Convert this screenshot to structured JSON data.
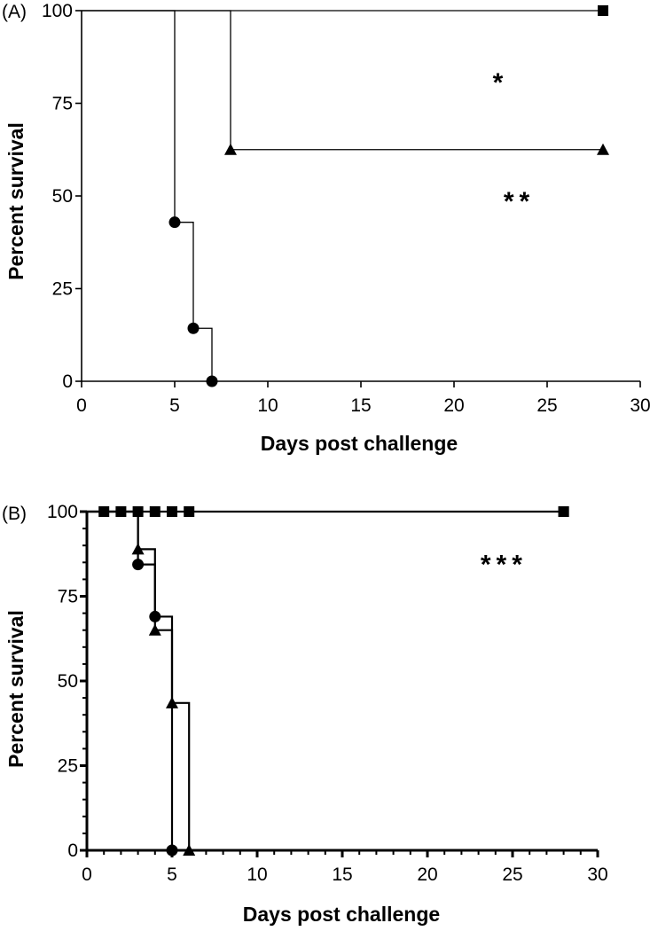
{
  "chart_data": [
    {
      "type": "line",
      "panel_label": "(A)",
      "xlabel": "Days post challenge",
      "ylabel": "Percent survival",
      "xlim": [
        0,
        30
      ],
      "ylim": [
        0,
        100
      ],
      "x_ticks": [
        0,
        5,
        10,
        15,
        20,
        25,
        30
      ],
      "y_ticks": [
        0,
        25,
        50,
        75,
        100
      ],
      "x_tick_labels": [
        "0",
        "5",
        "10",
        "15",
        "20",
        "25",
        "30"
      ],
      "y_tick_labels": [
        "0",
        "25",
        "50",
        "75",
        "100"
      ],
      "step_plot": true,
      "series": [
        {
          "marker": "square",
          "x": [
            0,
            28
          ],
          "y": [
            100,
            100
          ]
        },
        {
          "marker": "triangle",
          "x": [
            0,
            8,
            28
          ],
          "y": [
            100,
            62.5,
            62.5
          ]
        },
        {
          "marker": "circle",
          "x": [
            0,
            5,
            6,
            7
          ],
          "y": [
            100,
            42.9,
            14.3,
            0
          ]
        }
      ],
      "annotations": [
        {
          "text": "*",
          "x": 22.5,
          "y": 83
        },
        {
          "text": "**",
          "x": 23.5,
          "y": 51
        }
      ]
    },
    {
      "type": "line",
      "panel_label": "(B)",
      "xlabel": "Days post challenge",
      "ylabel": "Percent survival",
      "xlim": [
        0,
        30
      ],
      "ylim": [
        0,
        100
      ],
      "x_ticks": [
        0,
        5,
        10,
        15,
        20,
        25,
        30
      ],
      "y_ticks": [
        0,
        25,
        50,
        75,
        100
      ],
      "x_tick_labels": [
        "0",
        "5",
        "10",
        "15",
        "20",
        "25",
        "30"
      ],
      "y_tick_labels": [
        "0",
        "25",
        "50",
        "75",
        "100"
      ],
      "step_plot": true,
      "series": [
        {
          "marker": "square",
          "x": [
            0,
            28
          ],
          "y": [
            100,
            100
          ],
          "censored_x": [
            1,
            2,
            3,
            4,
            5,
            6,
            28
          ]
        },
        {
          "marker": "triangle",
          "x": [
            0,
            3,
            4,
            5,
            6
          ],
          "y": [
            100,
            88.9,
            65,
            43.5,
            0
          ]
        },
        {
          "marker": "circle",
          "x": [
            0,
            3,
            4,
            5
          ],
          "y": [
            100,
            84.4,
            69,
            0
          ]
        }
      ],
      "annotations": [
        {
          "text": "***",
          "x": 24.5,
          "y": 87
        }
      ]
    }
  ]
}
